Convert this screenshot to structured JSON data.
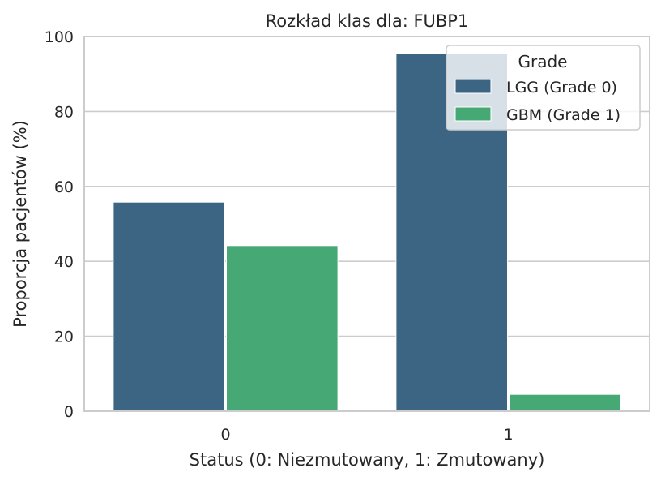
{
  "chart_data": {
    "type": "bar",
    "title": "Rozkład klas dla: FUBP1",
    "xlabel": "Status (0: Niezmutowany, 1: Zmutowany)",
    "ylabel": "Proporcja pacjentów (%)",
    "categories": [
      "0",
      "1"
    ],
    "series": [
      {
        "name": "LGG (Grade 0)",
        "values": [
          55.8,
          95.5
        ],
        "color": "#3b6583"
      },
      {
        "name": "GBM (Grade 1)",
        "values": [
          44.2,
          4.5
        ],
        "color": "#45a875"
      }
    ],
    "ylim": [
      0,
      100
    ],
    "yticks": [
      0,
      20,
      40,
      60,
      80,
      100
    ],
    "grid": true,
    "legend": {
      "title": "Grade",
      "position": "top-right"
    }
  }
}
